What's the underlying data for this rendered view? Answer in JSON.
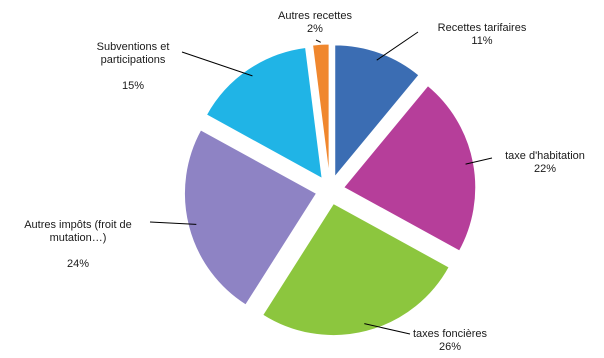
{
  "chart_data": {
    "type": "pie",
    "exploded": true,
    "start_angle_deg": 0,
    "direction": "clockwise",
    "slices": [
      {
        "label": "Recettes tarifaires",
        "value": 11,
        "value_label": "11%",
        "color": "#3b6db3"
      },
      {
        "label": "taxe d'habitation",
        "value": 22,
        "value_label": "22%",
        "color": "#b63e9a"
      },
      {
        "label": "taxes foncières",
        "value": 26,
        "value_label": "26%",
        "color": "#8cc63e"
      },
      {
        "label": "Autres impôts (froit de\nmutation…)",
        "value": 24,
        "value_label": "24%",
        "color": "#8e83c4"
      },
      {
        "label": "Subventions et\nparticipations",
        "value": 15,
        "value_label": "15%",
        "color": "#20b4e6"
      },
      {
        "label": "Autres recettes",
        "value": 2,
        "value_label": "2%",
        "color": "#f0872e"
      }
    ]
  }
}
